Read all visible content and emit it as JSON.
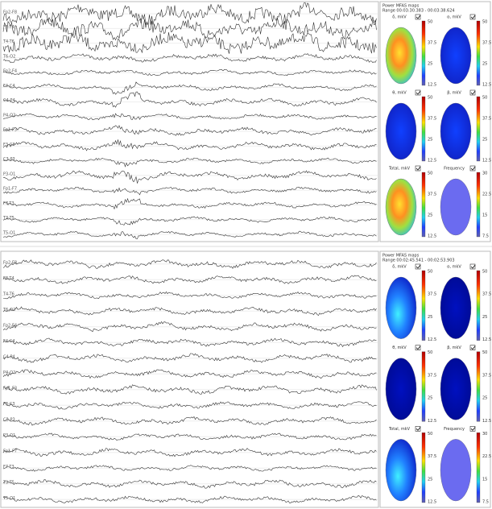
{
  "panels": [
    {
      "channels": [
        "Fp2-F8",
        "F8-T4",
        "T4-T6",
        "T6-O2",
        "Fp2-F4",
        "F4-C4",
        "C4-P4",
        "P4-O2",
        "Fp1-F3",
        "F3-C3",
        "C3-P3",
        "P3-O1",
        "Fp1-F7",
        "F7-T3",
        "T3-T5",
        "T5-O1"
      ],
      "maps_title": "Power MFAS maps",
      "range": "Range 00:03:30.383 - 00:03:38.624",
      "maps": [
        {
          "label": "δ, mkV",
          "ticks": [
            "50",
            "37.5",
            "25",
            "12.5"
          ]
        },
        {
          "label": "α, mkV",
          "ticks": [
            "50",
            "37.5",
            "25",
            "12.5"
          ]
        },
        {
          "label": "θ, mkV",
          "ticks": [
            "50",
            "37.5",
            "25",
            "12.5"
          ]
        },
        {
          "label": "β, mkV",
          "ticks": [
            "50",
            "37.5",
            "25",
            "12.5"
          ]
        },
        {
          "label": "Total, mkV",
          "ticks": [
            "50",
            "37.5",
            "25",
            "12.5"
          ]
        },
        {
          "label": "Frequency",
          "ticks": [
            "30",
            "22.5",
            "15",
            "7.5"
          ]
        }
      ]
    },
    {
      "channels": [
        "Fp2-F8",
        "F8-T4",
        "T4-T6",
        "T6-O2",
        "Fp2-F4",
        "F4-C4",
        "C4-P4",
        "P4-O2",
        "Fp1-F3",
        "F3-C3",
        "C3-P3",
        "P3-O1",
        "Fp1-F7",
        "F7-T3",
        "T3-T5",
        "T5-O1"
      ],
      "maps_title": "Power MFAS maps",
      "range": "Range 00:02:45.541 - 00:02:53.903",
      "maps": [
        {
          "label": "δ, mkV",
          "ticks": [
            "50",
            "37.5",
            "25",
            "12.5"
          ]
        },
        {
          "label": "α, mkV",
          "ticks": [
            "50",
            "37.5",
            "25",
            "12.5"
          ]
        },
        {
          "label": "θ, mkV",
          "ticks": [
            "50",
            "37.5",
            "25",
            "12.5"
          ]
        },
        {
          "label": "β, mkV",
          "ticks": [
            "50",
            "37.5",
            "25",
            "12.5"
          ]
        },
        {
          "label": "Total, mkV",
          "ticks": [
            "50",
            "37.5",
            "25",
            "12.5"
          ]
        },
        {
          "label": "Frequency",
          "ticks": [
            "30",
            "22.5",
            "15",
            "7.5"
          ]
        }
      ]
    }
  ]
}
